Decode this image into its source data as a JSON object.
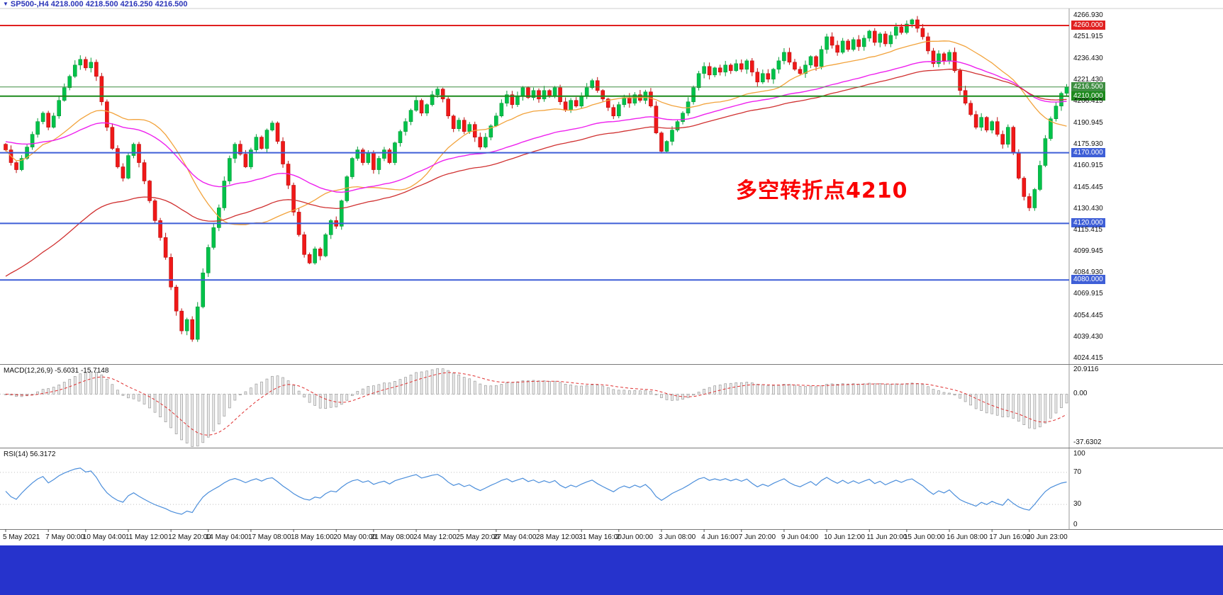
{
  "header": {
    "marker": "▼",
    "title": "SP500-,H4 4218.000 4218.500 4216.250 4216.500",
    "color": "#2a34b8"
  },
  "annotation": {
    "text": "多空转折点4210",
    "color": "#fa0000"
  },
  "chart_data": {
    "type": "candlestick",
    "symbol": "SP500",
    "timeframe": "H4",
    "current_bar": {
      "open": 4218.0,
      "high": 4218.5,
      "low": 4216.25,
      "close": 4216.5
    },
    "y_axis": {
      "max": 4272.0,
      "min": 4020.5
    },
    "first_open": 4176,
    "closes": [
      4172,
      4163,
      4158,
      4166,
      4174,
      4183,
      4192,
      4198,
      4188,
      4196,
      4207,
      4216,
      4224,
      4232,
      4236,
      4230,
      4234,
      4224,
      4206,
      4188,
      4173,
      4160,
      4152,
      4168,
      4176,
      4163,
      4150,
      4136,
      4122,
      4110,
      4096,
      4075,
      4058,
      4044,
      4052,
      4038,
      4061,
      4085,
      4103,
      4117,
      4131,
      4150,
      4166,
      4176,
      4169,
      4160,
      4172,
      4181,
      4173,
      4186,
      4191,
      4178,
      4162,
      4147,
      4128,
      4112,
      4098,
      4092,
      4102,
      4097,
      4112,
      4122,
      4118,
      4136,
      4153,
      4166,
      4172,
      4163,
      4170,
      4158,
      4166,
      4172,
      4163,
      4177,
      4185,
      4192,
      4200,
      4207,
      4198,
      4204,
      4211,
      4215,
      4208,
      4196,
      4187,
      4193,
      4185,
      4190,
      4181,
      4174,
      4181,
      4189,
      4196,
      4205,
      4211,
      4204,
      4210,
      4216,
      4209,
      4214,
      4208,
      4214,
      4210,
      4216,
      4206,
      4200,
      4207,
      4203,
      4210,
      4216,
      4221,
      4214,
      4208,
      4202,
      4196,
      4204,
      4209,
      4205,
      4211,
      4207,
      4213,
      4203,
      4184,
      4171,
      4178,
      4186,
      4192,
      4198,
      4206,
      4216,
      4226,
      4231,
      4225,
      4230,
      4227,
      4232,
      4228,
      4233,
      4229,
      4235,
      4227,
      4220,
      4226,
      4222,
      4229,
      4235,
      4241,
      4234,
      4229,
      4226,
      4232,
      4238,
      4231,
      4243,
      4252,
      4246,
      4241,
      4249,
      4243,
      4250,
      4245,
      4251,
      4256,
      4248,
      4254,
      4247,
      4253,
      4259,
      4255,
      4261,
      4264,
      4258,
      4252,
      4242,
      4233,
      4240,
      4235,
      4241,
      4228,
      4214,
      4205,
      4197,
      4188,
      4195,
      4186,
      4192,
      4183,
      4176,
      4188,
      4170,
      4152,
      4139,
      4131,
      4144,
      4161,
      4180,
      4194,
      4203,
      4212,
      4216.5
    ],
    "up_color": "#00c24a",
    "up_stroke": "#089b38",
    "down_color": "#f01818",
    "down_stroke": "#bb0f0f",
    "overlays": [
      {
        "name": "ma-orange-line",
        "type": "sma",
        "period": 24,
        "color": "#f2a33c",
        "width": 1.3
      },
      {
        "name": "ma-magenta-line",
        "type": "ema",
        "period": 55,
        "seed": 4178,
        "color": "#ee22ee",
        "width": 1.4
      },
      {
        "name": "ma-red-line",
        "type": "ema",
        "period": 70,
        "seed": 4080,
        "color": "#d03030",
        "width": 1.3
      }
    ],
    "hlines": [
      {
        "value": 4260,
        "label": "4260.000",
        "color": "#e02020",
        "width": 2
      },
      {
        "value": 4216.5,
        "label": "4216.500",
        "color": "#3e8e41",
        "width": 1
      },
      {
        "value": 4210,
        "label": "4210.000",
        "color": "#1d8a1d",
        "width": 2
      },
      {
        "value": 4170,
        "label": "4170.000",
        "color": "#3f5fd7",
        "width": 2
      },
      {
        "value": 4120,
        "label": "4120.000",
        "color": "#3f5fd7",
        "width": 2
      },
      {
        "value": 4080,
        "label": "4080.000",
        "color": "#3f5fd7",
        "width": 2
      }
    ]
  },
  "price_axis": {
    "items": [
      {
        "label": "4266.930",
        "value": 4266.93
      },
      {
        "label": "4251.915",
        "value": 4251.915
      },
      {
        "label": "4236.430",
        "value": 4236.43
      },
      {
        "label": "4221.430",
        "value": 4221.43
      },
      {
        "label": "4206.415",
        "value": 4206.415
      },
      {
        "label": "4190.945",
        "value": 4190.945
      },
      {
        "label": "4175.930",
        "value": 4175.93
      },
      {
        "label": "4160.915",
        "value": 4160.915
      },
      {
        "label": "4145.445",
        "value": 4145.445
      },
      {
        "label": "4130.430",
        "value": 4130.43
      },
      {
        "label": "4115.415",
        "value": 4115.415
      },
      {
        "label": "4099.945",
        "value": 4099.945
      },
      {
        "label": "4084.930",
        "value": 4084.93
      },
      {
        "label": "4069.915",
        "value": 4069.915
      },
      {
        "label": "4054.445",
        "value": 4054.445
      },
      {
        "label": "4039.430",
        "value": 4039.43
      },
      {
        "label": "4024.415",
        "value": 4024.415
      }
    ]
  },
  "macd_panel": {
    "label": "MACD(12,26,9) -5.6031 -15.7148",
    "params": {
      "fast": 12,
      "slow": 26,
      "signal": 9
    },
    "values": {
      "main": -5.6031,
      "signal": -15.7148
    },
    "max": 20.9116,
    "min": -37.6302,
    "axis": [
      {
        "label": "20.9116",
        "value": 20.9116
      },
      {
        "label": "0.00",
        "value": 0
      },
      {
        "label": "-37.6302",
        "value": -37.6302
      }
    ],
    "bar_fill": "#ececec",
    "bar_stroke": "#9a9a9a",
    "signal_color": "#e03030"
  },
  "rsi_panel": {
    "label": "RSI(14) 56.3172",
    "period": 14,
    "value": 56.3172,
    "levels": [
      70,
      30
    ],
    "line_color": "#4b8edb",
    "axis": [
      {
        "label": "100",
        "value": 100
      },
      {
        "label": "70",
        "value": 70
      },
      {
        "label": "30",
        "value": 30
      },
      {
        "label": "0",
        "value": 0
      }
    ]
  },
  "time_axis": {
    "labels": [
      {
        "text": "5 May 2021",
        "candle": 0
      },
      {
        "text": "7 May 00:00",
        "candle": 8
      },
      {
        "text": "10 May 04:00",
        "candle": 15
      },
      {
        "text": "11 May 12:00",
        "candle": 23
      },
      {
        "text": "12 May 20:00",
        "candle": 31
      },
      {
        "text": "14 May 04:00",
        "candle": 38
      },
      {
        "text": "17 May 08:00",
        "candle": 46
      },
      {
        "text": "18 May 16:00",
        "candle": 54
      },
      {
        "text": "20 May 00:00",
        "candle": 62
      },
      {
        "text": "21 May 08:00",
        "candle": 69
      },
      {
        "text": "24 May 12:00",
        "candle": 77
      },
      {
        "text": "25 May 20:00",
        "candle": 85
      },
      {
        "text": "27 May 04:00",
        "candle": 92
      },
      {
        "text": "28 May 12:00",
        "candle": 100
      },
      {
        "text": "31 May 16:00",
        "candle": 108
      },
      {
        "text": "2 Jun 00:00",
        "candle": 115
      },
      {
        "text": "3 Jun 08:00",
        "candle": 123
      },
      {
        "text": "4 Jun 16:00",
        "candle": 131
      },
      {
        "text": "7 Jun 20:00",
        "candle": 138
      },
      {
        "text": "9 Jun 04:00",
        "candle": 146
      },
      {
        "text": "10 Jun 12:00",
        "candle": 154
      },
      {
        "text": "11 Jun 20:00",
        "candle": 162
      },
      {
        "text": "15 Jun 00:00",
        "candle": 169
      },
      {
        "text": "16 Jun 08:00",
        "candle": 177
      },
      {
        "text": "17 Jun 16:00",
        "candle": 185
      },
      {
        "text": "20 Jun 23:00",
        "candle": 192
      }
    ]
  },
  "taskbar": {
    "color": "#2633cc"
  }
}
